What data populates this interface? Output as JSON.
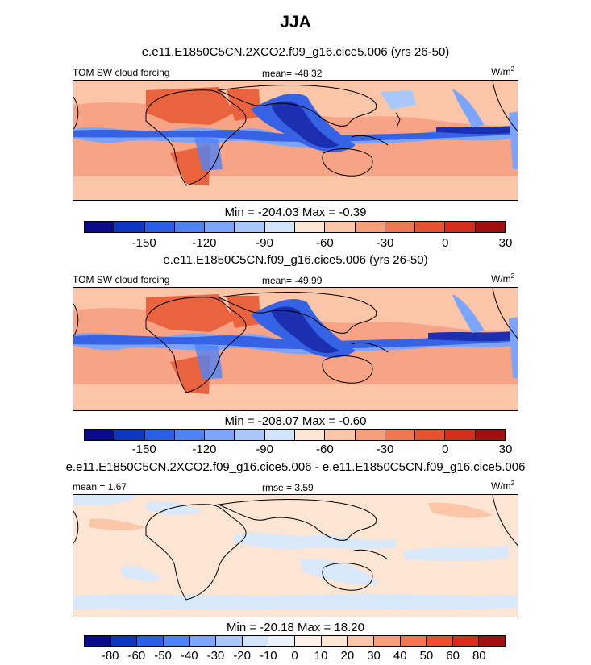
{
  "title": "JJA",
  "panels": [
    {
      "case_title": "e.e11.E1850C5CN.2XCO2.f09_g16.cice5.006 (yrs 26-50)",
      "left_label": "TOM SW cloud forcing",
      "center_label": "mean= -48.32",
      "units": "W/m",
      "units_sup": "2",
      "minmax": "Min = -204.03 Max =  -0.39",
      "colorbar_ticks": [
        "-150",
        "-120",
        "-90",
        "-60",
        "-30",
        "0",
        "30"
      ],
      "colorbar_colors": [
        "#0a0a8c",
        "#0f35c4",
        "#2b5ee8",
        "#4f83f5",
        "#7aa5fa",
        "#a8c8fb",
        "#d2e4fb",
        "#fde5d4",
        "#fbc6a7",
        "#f69e7a",
        "#f07752",
        "#e9502f",
        "#d42d1b",
        "#a30f0f"
      ]
    },
    {
      "case_title": "e.e11.E1850C5CN.f09_g16.cice5.006 (yrs 26-50)",
      "left_label": "TOM SW cloud forcing",
      "center_label": "mean= -49.99",
      "units": "W/m",
      "units_sup": "2",
      "minmax": "Min = -208.07 Max =  -0.60",
      "colorbar_ticks": [
        "-150",
        "-120",
        "-90",
        "-60",
        "-30",
        "0",
        "30"
      ],
      "colorbar_colors": [
        "#0a0a8c",
        "#0f35c4",
        "#2b5ee8",
        "#4f83f5",
        "#7aa5fa",
        "#a8c8fb",
        "#d2e4fb",
        "#fde5d4",
        "#fbc6a7",
        "#f69e7a",
        "#f07752",
        "#e9502f",
        "#d42d1b",
        "#a30f0f"
      ]
    },
    {
      "case_title": "e.e11.E1850C5CN.2XCO2.f09_g16.cice5.006 - e.e11.E1850C5CN.f09_g16.cice5.006",
      "left_label": "mean =   1.67",
      "center_label": "rmse =   3.59",
      "units": "W/m",
      "units_sup": "2",
      "minmax": "Min = -20.18 Max =  18.20",
      "colorbar_ticks": [
        "-80",
        "-60",
        "-50",
        "-40",
        "-30",
        "-20",
        "-10",
        "0",
        "10",
        "20",
        "30",
        "40",
        "50",
        "60",
        "80"
      ],
      "colorbar_colors": [
        "#0a0a8c",
        "#0f35c4",
        "#2b5ee8",
        "#4f83f5",
        "#7aa5fa",
        "#a8c8fb",
        "#d2e4fb",
        "#eaf2fd",
        "#fdf0e6",
        "#fde5d4",
        "#fbc6a7",
        "#f69e7a",
        "#f07752",
        "#e9502f",
        "#d42d1b",
        "#a30f0f"
      ]
    }
  ],
  "colors": {
    "ocean_field": "#f7a386",
    "desert_field": "#e9633f",
    "convective_blue": "#3663e6",
    "deep_blue": "#1b2fb0",
    "diff_background": "#fde5d4",
    "diff_blue": "#d9e8fb",
    "coastline": "#000000"
  }
}
